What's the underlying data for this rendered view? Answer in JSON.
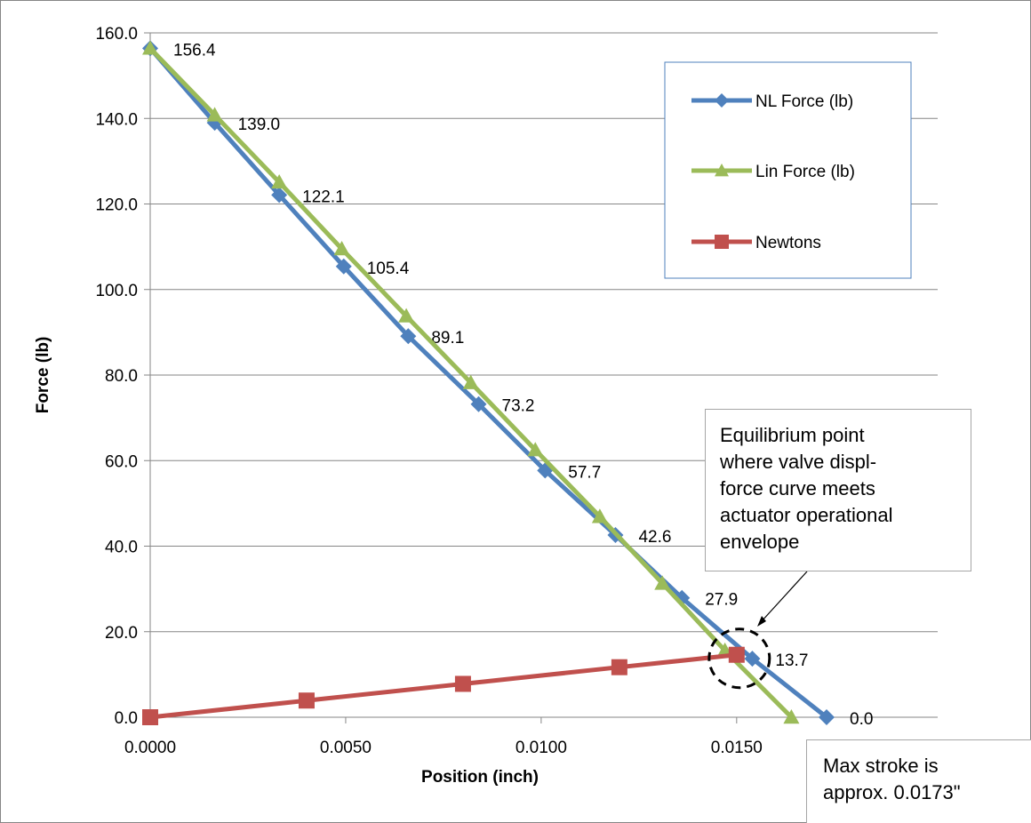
{
  "colors": {
    "nl_force": "#4f81bd",
    "lin_force": "#9bbb59",
    "newtons": "#c0504d",
    "grid": "#868686",
    "border": "#868686"
  },
  "chart_data": {
    "type": "line",
    "title": "",
    "xlabel": "Position (inch)",
    "ylabel": "Force (lb)",
    "xlim": [
      0,
      0.017
    ],
    "ylim": [
      0,
      160
    ],
    "xticks": [
      0,
      0.005,
      0.01,
      0.015
    ],
    "xtick_labels": [
      "0.0000",
      "0.0050",
      "0.0100",
      "0.0150"
    ],
    "yticks": [
      0,
      20,
      40,
      60,
      80,
      100,
      120,
      140,
      160
    ],
    "ytick_labels": [
      "0.0",
      "20.0",
      "40.0",
      "60.0",
      "80.0",
      "100.0",
      "120.0",
      "140.0",
      "160.0"
    ],
    "grid": "horizontal",
    "legend_position": "top-right",
    "series": [
      {
        "name": "NL Force (lb)",
        "marker": "diamond",
        "color": "#4f81bd",
        "x": [
          0.0,
          0.00165,
          0.0033,
          0.00495,
          0.0066,
          0.0084,
          0.0101,
          0.0119,
          0.0136,
          0.0154,
          0.0173
        ],
        "y": [
          156.4,
          139.0,
          122.1,
          105.4,
          89.1,
          73.2,
          57.7,
          42.6,
          27.9,
          13.7,
          0.0
        ],
        "labels": [
          "156.4",
          "139.0",
          "122.1",
          "105.4",
          "89.1",
          "73.2",
          "57.7",
          "42.6",
          "27.9",
          "13.7",
          "0.0"
        ]
      },
      {
        "name": "Lin Force (lb)",
        "marker": "triangle",
        "color": "#9bbb59",
        "x": [
          0.0,
          0.00165,
          0.0033,
          0.0049,
          0.00655,
          0.0082,
          0.00985,
          0.0115,
          0.0131,
          0.0147,
          0.0164
        ],
        "y": [
          156.4,
          140.8,
          125.1,
          109.5,
          93.8,
          78.2,
          62.5,
          46.9,
          31.3,
          15.6,
          0.0
        ]
      },
      {
        "name": "Newtons",
        "marker": "square",
        "color": "#c0504d",
        "x": [
          0.0,
          0.004,
          0.008,
          0.012,
          0.015
        ],
        "y": [
          0.0,
          3.9,
          7.8,
          11.7,
          14.6
        ]
      }
    ],
    "annotations": [
      {
        "id": "equilibrium",
        "lines": [
          "Equilibrium point",
          "where valve displ-",
          "force curve meets",
          "actuator operational",
          "envelope"
        ],
        "x": 0.015,
        "y": 14.6
      },
      {
        "id": "max-stroke",
        "lines": [
          "Max stroke is",
          "approx.  0.0173\""
        ]
      }
    ]
  }
}
